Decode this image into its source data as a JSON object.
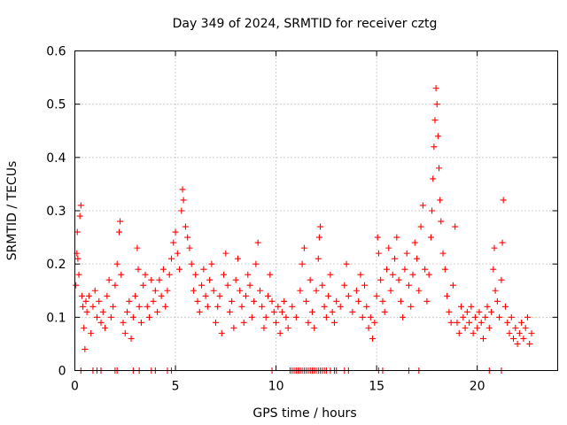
{
  "chart_data": {
    "type": "scatter",
    "title": "Day 349 of 2024, SRMTID for receiver cztg",
    "xlabel": "GPS time / hours",
    "ylabel": "SRMTID / TECUs",
    "xlim": [
      0,
      24
    ],
    "ylim": [
      0,
      0.6
    ],
    "grid": true,
    "x_ticks": [
      0,
      5,
      10,
      15,
      20
    ],
    "x_tick_labels": [
      "0",
      "5",
      "10",
      "15",
      "20"
    ],
    "y_ticks": [
      0,
      0.1,
      0.2,
      0.3,
      0.4,
      0.5,
      0.6
    ],
    "y_tick_labels": [
      "0",
      "0.1",
      "0.2",
      "0.3",
      "0.4",
      "0.5",
      "0.6"
    ],
    "marker": "plus",
    "colors": {
      "series": "#ff0000",
      "axes": "#000000",
      "grid": "#a0a0a0"
    },
    "series": [
      {
        "name": "SRMTID",
        "points": [
          [
            0.05,
            0.16
          ],
          [
            0.1,
            0.22
          ],
          [
            0.12,
            0.26
          ],
          [
            0.15,
            0.21
          ],
          [
            0.2,
            0.18
          ],
          [
            0.25,
            0.29
          ],
          [
            0.3,
            0.31
          ],
          [
            0.35,
            0.14
          ],
          [
            0.4,
            0.12
          ],
          [
            0.45,
            0.08
          ],
          [
            0.5,
            0.04
          ],
          [
            0.55,
            0.13
          ],
          [
            0.6,
            0.11
          ],
          [
            0.7,
            0.14
          ],
          [
            0.8,
            0.07
          ],
          [
            0.9,
            0.12
          ],
          [
            1.0,
            0.15
          ],
          [
            1.1,
            0.1
          ],
          [
            1.2,
            0.13
          ],
          [
            1.3,
            0.09
          ],
          [
            1.4,
            0.11
          ],
          [
            1.5,
            0.08
          ],
          [
            1.6,
            0.14
          ],
          [
            1.7,
            0.17
          ],
          [
            1.8,
            0.1
          ],
          [
            1.9,
            0.12
          ],
          [
            2.0,
            0.16
          ],
          [
            2.1,
            0.2
          ],
          [
            2.2,
            0.26
          ],
          [
            2.25,
            0.28
          ],
          [
            2.3,
            0.18
          ],
          [
            2.4,
            0.09
          ],
          [
            2.5,
            0.07
          ],
          [
            2.6,
            0.11
          ],
          [
            2.7,
            0.13
          ],
          [
            2.8,
            0.06
          ],
          [
            2.9,
            0.1
          ],
          [
            3.0,
            0.14
          ],
          [
            3.1,
            0.23
          ],
          [
            3.15,
            0.19
          ],
          [
            3.2,
            0.12
          ],
          [
            3.3,
            0.09
          ],
          [
            3.4,
            0.16
          ],
          [
            3.5,
            0.18
          ],
          [
            3.6,
            0.12
          ],
          [
            3.7,
            0.1
          ],
          [
            3.8,
            0.17
          ],
          [
            3.9,
            0.13
          ],
          [
            4.0,
            0.15
          ],
          [
            4.1,
            0.11
          ],
          [
            4.2,
            0.17
          ],
          [
            4.3,
            0.14
          ],
          [
            4.4,
            0.19
          ],
          [
            4.5,
            0.12
          ],
          [
            4.6,
            0.15
          ],
          [
            4.7,
            0.18
          ],
          [
            4.8,
            0.21
          ],
          [
            4.9,
            0.24
          ],
          [
            5.0,
            0.26
          ],
          [
            5.1,
            0.22
          ],
          [
            5.2,
            0.19
          ],
          [
            5.3,
            0.3
          ],
          [
            5.35,
            0.34
          ],
          [
            5.4,
            0.32
          ],
          [
            5.5,
            0.27
          ],
          [
            5.6,
            0.25
          ],
          [
            5.7,
            0.23
          ],
          [
            5.8,
            0.2
          ],
          [
            5.9,
            0.15
          ],
          [
            6.0,
            0.18
          ],
          [
            6.1,
            0.13
          ],
          [
            6.2,
            0.11
          ],
          [
            6.3,
            0.16
          ],
          [
            6.4,
            0.19
          ],
          [
            6.5,
            0.14
          ],
          [
            6.6,
            0.12
          ],
          [
            6.7,
            0.17
          ],
          [
            6.8,
            0.2
          ],
          [
            6.9,
            0.15
          ],
          [
            7.0,
            0.09
          ],
          [
            7.1,
            0.12
          ],
          [
            7.2,
            0.14
          ],
          [
            7.3,
            0.07
          ],
          [
            7.4,
            0.18
          ],
          [
            7.5,
            0.22
          ],
          [
            7.6,
            0.16
          ],
          [
            7.7,
            0.11
          ],
          [
            7.8,
            0.13
          ],
          [
            7.9,
            0.08
          ],
          [
            8.0,
            0.17
          ],
          [
            8.1,
            0.21
          ],
          [
            8.2,
            0.15
          ],
          [
            8.3,
            0.12
          ],
          [
            8.4,
            0.09
          ],
          [
            8.5,
            0.14
          ],
          [
            8.6,
            0.18
          ],
          [
            8.7,
            0.16
          ],
          [
            8.8,
            0.1
          ],
          [
            8.9,
            0.13
          ],
          [
            9.0,
            0.2
          ],
          [
            9.1,
            0.24
          ],
          [
            9.2,
            0.15
          ],
          [
            9.3,
            0.12
          ],
          [
            9.4,
            0.08
          ],
          [
            9.5,
            0.1
          ],
          [
            9.6,
            0.14
          ],
          [
            9.7,
            0.18
          ],
          [
            9.8,
            0.13
          ],
          [
            9.9,
            0.11
          ],
          [
            10.0,
            0.09
          ],
          [
            10.1,
            0.12
          ],
          [
            10.2,
            0.07
          ],
          [
            10.3,
            0.11
          ],
          [
            10.4,
            0.13
          ],
          [
            10.5,
            0.1
          ],
          [
            10.6,
            0.08
          ],
          [
            10.8,
            0.12
          ],
          [
            11.0,
            0.1
          ],
          [
            11.2,
            0.15
          ],
          [
            11.3,
            0.2
          ],
          [
            11.4,
            0.23
          ],
          [
            11.5,
            0.13
          ],
          [
            11.6,
            0.09
          ],
          [
            11.7,
            0.17
          ],
          [
            11.8,
            0.11
          ],
          [
            11.9,
            0.08
          ],
          [
            12.0,
            0.15
          ],
          [
            12.1,
            0.21
          ],
          [
            12.15,
            0.25
          ],
          [
            12.2,
            0.27
          ],
          [
            12.3,
            0.16
          ],
          [
            12.4,
            0.12
          ],
          [
            12.5,
            0.1
          ],
          [
            12.6,
            0.14
          ],
          [
            12.7,
            0.18
          ],
          [
            12.8,
            0.11
          ],
          [
            12.9,
            0.09
          ],
          [
            13.0,
            0.13
          ],
          [
            13.2,
            0.12
          ],
          [
            13.4,
            0.16
          ],
          [
            13.5,
            0.2
          ],
          [
            13.6,
            0.14
          ],
          [
            13.8,
            0.11
          ],
          [
            14.0,
            0.15
          ],
          [
            14.1,
            0.13
          ],
          [
            14.2,
            0.18
          ],
          [
            14.3,
            0.1
          ],
          [
            14.4,
            0.16
          ],
          [
            14.5,
            0.12
          ],
          [
            14.6,
            0.08
          ],
          [
            14.7,
            0.1
          ],
          [
            14.8,
            0.06
          ],
          [
            14.9,
            0.09
          ],
          [
            15.0,
            0.14
          ],
          [
            15.05,
            0.25
          ],
          [
            15.1,
            0.22
          ],
          [
            15.2,
            0.17
          ],
          [
            15.3,
            0.13
          ],
          [
            15.4,
            0.11
          ],
          [
            15.5,
            0.19
          ],
          [
            15.6,
            0.23
          ],
          [
            15.7,
            0.15
          ],
          [
            15.8,
            0.18
          ],
          [
            15.9,
            0.21
          ],
          [
            16.0,
            0.25
          ],
          [
            16.1,
            0.17
          ],
          [
            16.2,
            0.13
          ],
          [
            16.3,
            0.1
          ],
          [
            16.4,
            0.19
          ],
          [
            16.5,
            0.22
          ],
          [
            16.6,
            0.16
          ],
          [
            16.7,
            0.12
          ],
          [
            16.8,
            0.18
          ],
          [
            16.9,
            0.24
          ],
          [
            17.0,
            0.21
          ],
          [
            17.1,
            0.15
          ],
          [
            17.2,
            0.27
          ],
          [
            17.3,
            0.31
          ],
          [
            17.4,
            0.19
          ],
          [
            17.5,
            0.13
          ],
          [
            17.6,
            0.18
          ],
          [
            17.7,
            0.25
          ],
          [
            17.75,
            0.3
          ],
          [
            17.8,
            0.36
          ],
          [
            17.85,
            0.42
          ],
          [
            17.9,
            0.47
          ],
          [
            17.95,
            0.53
          ],
          [
            18.0,
            0.5
          ],
          [
            18.05,
            0.44
          ],
          [
            18.1,
            0.38
          ],
          [
            18.15,
            0.32
          ],
          [
            18.2,
            0.28
          ],
          [
            18.3,
            0.22
          ],
          [
            18.4,
            0.19
          ],
          [
            18.5,
            0.14
          ],
          [
            18.6,
            0.11
          ],
          [
            18.7,
            0.09
          ],
          [
            18.8,
            0.16
          ],
          [
            18.9,
            0.27
          ],
          [
            19.0,
            0.09
          ],
          [
            19.1,
            0.07
          ],
          [
            19.2,
            0.12
          ],
          [
            19.3,
            0.1
          ],
          [
            19.4,
            0.08
          ],
          [
            19.5,
            0.11
          ],
          [
            19.6,
            0.09
          ],
          [
            19.7,
            0.12
          ],
          [
            19.8,
            0.07
          ],
          [
            19.9,
            0.1
          ],
          [
            20.0,
            0.08
          ],
          [
            20.1,
            0.11
          ],
          [
            20.2,
            0.09
          ],
          [
            20.3,
            0.06
          ],
          [
            20.4,
            0.1
          ],
          [
            20.5,
            0.12
          ],
          [
            20.6,
            0.08
          ],
          [
            20.7,
            0.11
          ],
          [
            20.8,
            0.19
          ],
          [
            20.85,
            0.23
          ],
          [
            20.9,
            0.15
          ],
          [
            21.0,
            0.13
          ],
          [
            21.1,
            0.1
          ],
          [
            21.2,
            0.17
          ],
          [
            21.25,
            0.24
          ],
          [
            21.3,
            0.32
          ],
          [
            21.4,
            0.12
          ],
          [
            21.5,
            0.09
          ],
          [
            21.6,
            0.07
          ],
          [
            21.7,
            0.1
          ],
          [
            21.8,
            0.06
          ],
          [
            21.9,
            0.08
          ],
          [
            22.0,
            0.05
          ],
          [
            22.1,
            0.07
          ],
          [
            22.2,
            0.09
          ],
          [
            22.3,
            0.06
          ],
          [
            22.4,
            0.08
          ],
          [
            22.5,
            0.1
          ],
          [
            22.6,
            0.05
          ],
          [
            22.7,
            0.07
          ],
          [
            0.3,
            0.0
          ],
          [
            0.9,
            0.0
          ],
          [
            1.1,
            0.0
          ],
          [
            1.3,
            0.0
          ],
          [
            2.0,
            0.0
          ],
          [
            2.1,
            0.0
          ],
          [
            2.9,
            0.0
          ],
          [
            3.2,
            0.0
          ],
          [
            3.8,
            0.0
          ],
          [
            4.0,
            0.0
          ],
          [
            4.6,
            0.0
          ],
          [
            4.8,
            0.0
          ],
          [
            9.8,
            0.0
          ],
          [
            10.7,
            0.0
          ],
          [
            10.8,
            0.0
          ],
          [
            10.9,
            0.0
          ],
          [
            11.0,
            0.0
          ],
          [
            11.1,
            0.0
          ],
          [
            11.2,
            0.0
          ],
          [
            11.3,
            0.0
          ],
          [
            11.4,
            0.0
          ],
          [
            11.5,
            0.0
          ],
          [
            11.6,
            0.0
          ],
          [
            11.7,
            0.0
          ],
          [
            11.8,
            0.0
          ],
          [
            11.9,
            0.0
          ],
          [
            12.0,
            0.0
          ],
          [
            12.1,
            0.0
          ],
          [
            12.2,
            0.0
          ],
          [
            12.3,
            0.0
          ],
          [
            12.4,
            0.0
          ],
          [
            12.5,
            0.0
          ],
          [
            12.7,
            0.0
          ],
          [
            12.9,
            0.0
          ],
          [
            13.0,
            0.0
          ],
          [
            13.4,
            0.0
          ],
          [
            13.6,
            0.0
          ],
          [
            15.1,
            0.0
          ],
          [
            15.3,
            0.0
          ],
          [
            16.6,
            0.0
          ],
          [
            17.1,
            0.0
          ],
          [
            20.6,
            0.0
          ],
          [
            21.2,
            0.0
          ]
        ]
      }
    ]
  }
}
